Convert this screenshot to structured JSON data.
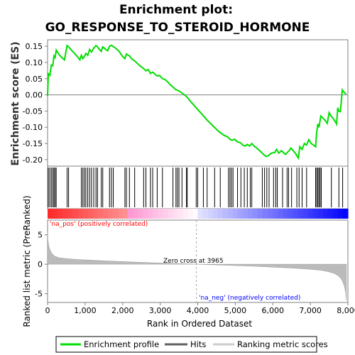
{
  "chart_data": {
    "type": "line",
    "title_line1": "Enrichment plot:",
    "title_line2": "GO_RESPONSE_TO_STEROID_HORMONE",
    "es_panel": {
      "ylabel": "Enrichment score (ES)",
      "ylim": [
        -0.22,
        0.17
      ],
      "yticks": [
        -0.2,
        -0.15,
        -0.1,
        -0.05,
        0.0,
        0.05,
        0.1,
        0.15
      ],
      "ytick_labels": [
        "-0.20",
        "-0.15",
        "-0.10",
        "-0.05",
        "0.00",
        "0.05",
        "0.10",
        "0.15"
      ],
      "color": "#00dd00",
      "series": {
        "name": "Enrichment profile",
        "x": [
          0,
          20,
          60,
          100,
          140,
          170,
          200,
          230,
          300,
          380,
          450,
          520,
          560,
          620,
          700,
          780,
          860,
          900,
          940,
          980,
          1020,
          1070,
          1120,
          1170,
          1230,
          1290,
          1330,
          1380,
          1430,
          1470,
          1530,
          1600,
          1650,
          1700,
          1750,
          1800,
          1900,
          2000,
          2060,
          2100,
          2180,
          2250,
          2320,
          2400,
          2500,
          2560,
          2620,
          2680,
          2740,
          2800,
          2860,
          2920,
          2980,
          3060,
          3120,
          3200,
          3280,
          3340,
          3420,
          3500,
          3580,
          3700,
          3820,
          3960,
          4100,
          4250,
          4400,
          4550,
          4700,
          4800,
          4870,
          4920,
          4980,
          5060,
          5140,
          5200,
          5260,
          5320,
          5380,
          5440,
          5500,
          5580,
          5650,
          5720,
          5760,
          5820,
          5880,
          5960,
          6050,
          6100,
          6160,
          6230,
          6280,
          6340,
          6400,
          6440,
          6480,
          6540,
          6600,
          6640,
          6680,
          6720,
          6780,
          6840,
          6900,
          6960,
          7020,
          7080,
          7140,
          7170,
          7200,
          7230,
          7280,
          7340,
          7400,
          7450,
          7500,
          7550,
          7600,
          7650,
          7700,
          7730,
          7760,
          7800,
          7850,
          7880,
          7920,
          7950
        ],
        "y": [
          -0.003,
          0.065,
          0.06,
          0.092,
          0.09,
          0.12,
          0.115,
          0.138,
          0.125,
          0.115,
          0.108,
          0.152,
          0.148,
          0.14,
          0.13,
          0.12,
          0.108,
          0.122,
          0.112,
          0.118,
          0.128,
          0.122,
          0.14,
          0.132,
          0.144,
          0.152,
          0.148,
          0.14,
          0.134,
          0.148,
          0.142,
          0.136,
          0.15,
          0.153,
          0.149,
          0.145,
          0.135,
          0.118,
          0.112,
          0.126,
          0.12,
          0.11,
          0.105,
          0.096,
          0.086,
          0.081,
          0.074,
          0.078,
          0.066,
          0.07,
          0.064,
          0.058,
          0.06,
          0.05,
          0.048,
          0.04,
          0.03,
          0.024,
          0.016,
          0.012,
          0.006,
          -0.005,
          -0.022,
          -0.04,
          -0.058,
          -0.078,
          -0.095,
          -0.112,
          -0.125,
          -0.13,
          -0.138,
          -0.14,
          -0.137,
          -0.145,
          -0.148,
          -0.155,
          -0.158,
          -0.153,
          -0.158,
          -0.15,
          -0.158,
          -0.165,
          -0.172,
          -0.18,
          -0.185,
          -0.19,
          -0.188,
          -0.18,
          -0.178,
          -0.168,
          -0.18,
          -0.172,
          -0.178,
          -0.184,
          -0.176,
          -0.172,
          -0.164,
          -0.172,
          -0.18,
          -0.188,
          -0.195,
          -0.16,
          -0.168,
          -0.15,
          -0.155,
          -0.138,
          -0.15,
          -0.155,
          -0.16,
          -0.115,
          -0.09,
          -0.1,
          -0.065,
          -0.072,
          -0.08,
          -0.088,
          -0.055,
          -0.065,
          -0.072,
          -0.08,
          -0.09,
          -0.04,
          -0.05,
          -0.052,
          0.015,
          0.01,
          0.006,
          0.002
        ]
      }
    },
    "hits": [
      20,
      60,
      100,
      140,
      170,
      200,
      230,
      520,
      560,
      900,
      940,
      980,
      1020,
      1070,
      1120,
      1170,
      1230,
      1290,
      1330,
      1430,
      1470,
      1650,
      1700,
      1750,
      2060,
      2100,
      2180,
      2320,
      2560,
      2620,
      2740,
      2800,
      2920,
      3060,
      3340,
      3420,
      3460,
      3500,
      3580,
      3700,
      3720,
      3960,
      4000,
      4150,
      4250,
      4450,
      4600,
      4820,
      4860,
      4900,
      4940,
      5060,
      5150,
      5240,
      5320,
      5400,
      5440,
      5720,
      5780,
      5840,
      5900,
      6020,
      6080,
      6120,
      6260,
      6380,
      6420,
      6500,
      6640,
      6700,
      6780,
      6900,
      7140,
      7170,
      7200,
      7230,
      7260,
      7290,
      7560,
      7760,
      7860
    ],
    "x_max": 8000,
    "ranked_panel": {
      "ylabel": "Ranked list metric (PreRanked)",
      "xlabel": "Rank in Ordered Dataset",
      "ylim": [
        -6.5,
        7.5
      ],
      "yticks": [
        -5,
        0,
        5
      ],
      "ytick_labels": [
        "-5",
        "0",
        "5"
      ],
      "xticks": [
        0,
        1000,
        2000,
        3000,
        4000,
        5000,
        6000,
        7000,
        8000
      ],
      "xtick_labels": [
        "0",
        "1,000",
        "2,000",
        "3,000",
        "4,000",
        "5,000",
        "6,000",
        "7,000",
        "8,000"
      ],
      "zero_cross": 3965,
      "zero_cross_label": "Zero cross at 3965",
      "pos_label": "'na_pos' (positively correlated)",
      "neg_label": "'na_neg' (negatively correlated)",
      "pos_color": "#ff0000",
      "neg_color": "#0000ff",
      "metric_color": "#bbbbbb",
      "metric_points": {
        "x": [
          0,
          10,
          30,
          60,
          100,
          150,
          200,
          300,
          500,
          800,
          1200,
          1600,
          2000,
          2500,
          3000,
          3500,
          3965,
          4500,
          5000,
          5500,
          6000,
          6500,
          7000,
          7300,
          7500,
          7650,
          7750,
          7820,
          7870,
          7910,
          7940,
          7960
        ],
        "y": [
          5.5,
          4.2,
          3.2,
          2.5,
          2.0,
          1.6,
          1.35,
          1.1,
          0.95,
          0.8,
          0.68,
          0.55,
          0.45,
          0.32,
          0.2,
          0.1,
          0.0,
          -0.12,
          -0.22,
          -0.35,
          -0.5,
          -0.65,
          -0.85,
          -1.05,
          -1.3,
          -1.6,
          -2.0,
          -2.5,
          -3.1,
          -3.8,
          -4.8,
          -6.2
        ]
      }
    },
    "legend": [
      "Enrichment profile",
      "Hits",
      "Ranking metric scores"
    ],
    "legend_colors": {
      "profile": "#00dd00",
      "hits": "#000000",
      "ranking": "#cccccc"
    }
  }
}
